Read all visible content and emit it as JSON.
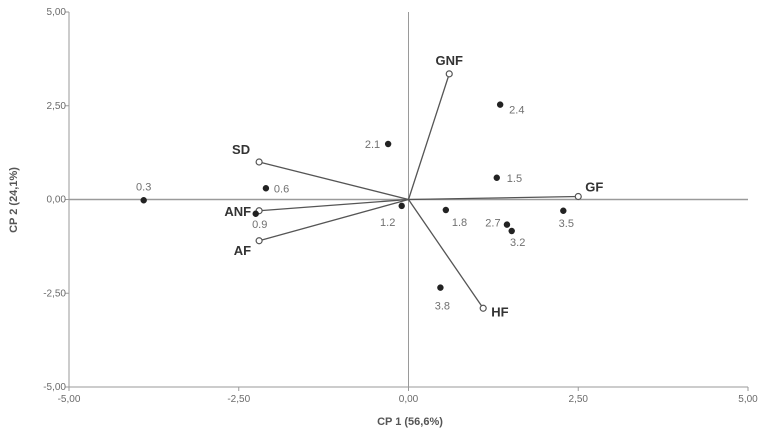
{
  "chart_data": {
    "type": "scatter",
    "title": "",
    "xlabel": "CP 1 (56,6%)",
    "ylabel": "CP 2 (24,1%)",
    "xlim": [
      -5,
      5
    ],
    "ylim": [
      -5,
      5
    ],
    "x_ticks": [
      "-5,00",
      "-2,50",
      "0,00",
      "2,50",
      "5,00"
    ],
    "y_ticks": [
      "5,00",
      "2,50",
      "0,00",
      "-2,50",
      "-5,00"
    ],
    "x_tick_values": [
      -5,
      -2.5,
      0,
      2.5,
      5
    ],
    "y_tick_values": [
      5,
      2.5,
      0,
      -2.5,
      -5
    ],
    "grid": false,
    "legend": "none",
    "colors": {
      "axis": "#9a9a9a",
      "vector": "#555555",
      "point": "#222222"
    },
    "loadings": [
      {
        "name": "GNF",
        "x": 0.6,
        "y": 3.35
      },
      {
        "name": "SD",
        "x": -2.2,
        "y": 1.0
      },
      {
        "name": "GF",
        "x": 2.5,
        "y": 0.08
      },
      {
        "name": "ANF",
        "x": -2.2,
        "y": -0.3
      },
      {
        "name": "AF",
        "x": -2.2,
        "y": -1.1
      },
      {
        "name": "HF",
        "x": 1.1,
        "y": -2.9
      }
    ],
    "points": [
      {
        "label": "0.3",
        "x": -3.9,
        "y": -0.02
      },
      {
        "label": "0.6",
        "x": -2.1,
        "y": 0.3
      },
      {
        "label": "0.9",
        "x": -2.25,
        "y": -0.38
      },
      {
        "label": "1.2",
        "x": -0.1,
        "y": -0.17
      },
      {
        "label": "1.5",
        "x": 1.3,
        "y": 0.58
      },
      {
        "label": "1.8",
        "x": 0.55,
        "y": -0.28
      },
      {
        "label": "2.1",
        "x": -0.3,
        "y": 1.48
      },
      {
        "label": "2.4",
        "x": 1.35,
        "y": 2.53
      },
      {
        "label": "2.7",
        "x": 1.45,
        "y": -0.67
      },
      {
        "label": "3.2",
        "x": 1.52,
        "y": -0.84
      },
      {
        "label": "3.5",
        "x": 2.28,
        "y": -0.3
      },
      {
        "label": "3.8",
        "x": 0.47,
        "y": -2.35
      }
    ]
  }
}
